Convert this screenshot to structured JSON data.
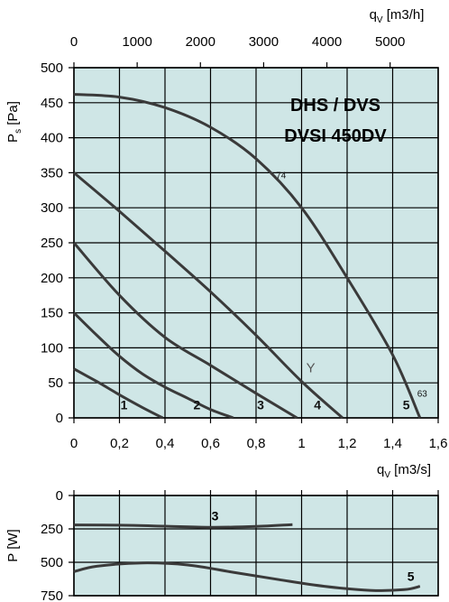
{
  "chart_data": [
    {
      "type": "line",
      "title_lines": [
        "DHS / DVS",
        "DVSI 450DV"
      ],
      "ylabel_main": "P",
      "ylabel_sub": "s",
      "ylabel_unit": "[Pa]",
      "xlabel_top_main": "q",
      "xlabel_top_sub": "V",
      "xlabel_top_unit": "[m3/h]",
      "xlabel_bottom_main": "q",
      "xlabel_bottom_sub": "V",
      "xlabel_bottom_unit": "[m3/s]",
      "xlim": [
        0,
        1.6
      ],
      "ylim": [
        0,
        500
      ],
      "grid": true,
      "background": "#cfe6e6",
      "line_color": "#3a3a3a",
      "x_ticks": [
        "0",
        "0,2",
        "0,4",
        "0,6",
        "0,8",
        "1",
        "1,2",
        "1,4",
        "1,6"
      ],
      "y_ticks": [
        "0",
        "50",
        "100",
        "150",
        "200",
        "250",
        "300",
        "350",
        "400",
        "450",
        "500"
      ],
      "top_ticks": [
        "0",
        "1000",
        "2000",
        "3000",
        "4000",
        "5000"
      ],
      "series": [
        {
          "name": "1",
          "x": [
            0,
            0.1,
            0.2,
            0.3,
            0.39
          ],
          "y": [
            70,
            52,
            33,
            15,
            0
          ]
        },
        {
          "name": "2",
          "x": [
            0,
            0.1,
            0.2,
            0.3,
            0.4,
            0.5,
            0.6,
            0.7
          ],
          "y": [
            150,
            118,
            88,
            63,
            44,
            28,
            12,
            0
          ]
        },
        {
          "name": "3",
          "x": [
            0,
            0.2,
            0.4,
            0.6,
            0.8,
            0.98
          ],
          "y": [
            250,
            175,
            115,
            75,
            35,
            0
          ]
        },
        {
          "name": "4",
          "x": [
            0,
            0.2,
            0.4,
            0.6,
            0.8,
            1.0,
            1.18
          ],
          "y": [
            350,
            295,
            238,
            180,
            118,
            52,
            0
          ]
        },
        {
          "name": "5",
          "x": [
            0,
            0.2,
            0.4,
            0.6,
            0.8,
            1.0,
            1.2,
            1.4,
            1.52
          ],
          "y": [
            462,
            458,
            443,
            415,
            370,
            300,
            200,
            90,
            0
          ]
        }
      ],
      "curve_labels": [
        {
          "text": "1",
          "x": 0.22,
          "y": 12
        },
        {
          "text": "2",
          "x": 0.54,
          "y": 12
        },
        {
          "text": "3",
          "x": 0.82,
          "y": 12
        },
        {
          "text": "4",
          "x": 1.07,
          "y": 12
        },
        {
          "text": "5",
          "x": 1.46,
          "y": 12
        },
        {
          "text": "74",
          "x": 0.91,
          "y": 342
        },
        {
          "text": "63",
          "x": 1.53,
          "y": 30
        },
        {
          "text": "Y",
          "x": 1.04,
          "y": 65
        }
      ]
    },
    {
      "type": "line",
      "ylabel": "P [W]",
      "xlim": [
        0,
        1.6
      ],
      "ylim": [
        0,
        750
      ],
      "grid": true,
      "y_ticks": [
        "0",
        "250",
        "500",
        "750"
      ],
      "series": [
        {
          "name": "3",
          "x": [
            0,
            0.2,
            0.4,
            0.6,
            0.8,
            0.96
          ],
          "y": [
            220,
            222,
            230,
            238,
            232,
            218
          ]
        },
        {
          "name": "5",
          "x": [
            0,
            0.1,
            0.3,
            0.5,
            0.7,
            0.9,
            1.1,
            1.3,
            1.45,
            1.52
          ],
          "y": [
            570,
            530,
            505,
            520,
            575,
            630,
            680,
            710,
            705,
            680
          ]
        }
      ]
    }
  ]
}
